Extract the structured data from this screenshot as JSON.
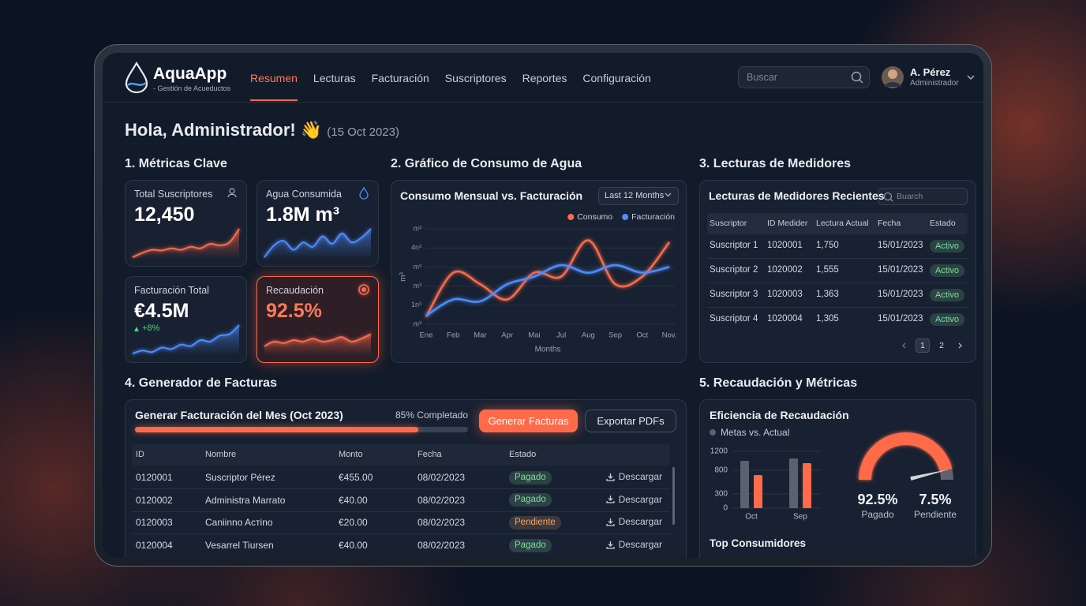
{
  "header": {
    "logo_title": "AquaApp",
    "logo_subtitle": "- Gestión de Acueductos",
    "nav": [
      "Resumen",
      "Lecturas",
      "Facturación",
      "Suscriptores",
      "Reportes",
      "Configuración"
    ],
    "search_placeholder": "Buscar",
    "user_name": "A. Pérez",
    "user_role": "Administrador"
  },
  "greeting": {
    "title": "Hola, Administrador! 👋",
    "date": "(15 Oct 2023)"
  },
  "metrics": {
    "title": "1. Métricas Clave",
    "cards": [
      {
        "label": "Total Suscriptores",
        "value": "12,450"
      },
      {
        "label": "Agua Consumida",
        "value": "1.8M m³"
      },
      {
        "label": "Facturación Total",
        "value": "€4.5M",
        "delta": "+8%"
      },
      {
        "label": "Recaudación",
        "value": "92.5%"
      }
    ]
  },
  "consumption": {
    "title": "2. Gráfico de Consumo de Agua",
    "period": "Last 12 Months"
  },
  "meters": {
    "title": "3. Lecturas de Medidores",
    "card_title": "Lecturas de Medidores Recientes",
    "search_placeholder": "Buarch",
    "columns": [
      "Suscriptor",
      "ID Medider",
      "Lectura Actual",
      "Fecha",
      "Estado"
    ],
    "rows": [
      {
        "subscriber": "Suscriptor 1",
        "meter_id": "1020001",
        "reading": "1,750",
        "date": "15/01/2023",
        "status": "Activo",
        "status_color": "#7fdc9c"
      },
      {
        "subscriber": "Suscriptor 2",
        "meter_id": "1020002",
        "reading": "1,555",
        "date": "15/01/2023",
        "status": "Activo",
        "status_color": "#7fdc9c"
      },
      {
        "subscriber": "Suscriptor 3",
        "meter_id": "1020003",
        "reading": "1,363",
        "date": "15/01/2023",
        "status": "Activo",
        "status_color": "#7fdc9c"
      },
      {
        "subscriber": "Suscriptor 4",
        "meter_id": "1020004",
        "reading": "1,305",
        "date": "15/01/2023",
        "status": "Activo",
        "status_color": "#7fdc9c"
      }
    ],
    "pages": [
      "1",
      "2"
    ]
  },
  "invoices": {
    "title": "4. Generador de Facturas",
    "task": "Generar Facturación del Mes (Oct 2023)",
    "progress": {
      "value": 85,
      "label": "85% Completado"
    },
    "buttons": [
      "Generar Facturas",
      "Exportar PDFs"
    ],
    "columns": [
      "ID",
      "Nombre",
      "Monto",
      "Fecha",
      "Estado"
    ],
    "rows": [
      {
        "id": "0120001",
        "name": "Suscriptor Pérez",
        "amount": "€455.00",
        "date": "08/02/2023",
        "status": "Pagado",
        "status_color": "#7fdc9c",
        "action": "Descargar"
      },
      {
        "id": "0120002",
        "name": "Administra Marrato",
        "amount": "€40.00",
        "date": "08/02/2023",
        "status": "Pagado",
        "status_color": "#7fdc9c",
        "action": "Descargar"
      },
      {
        "id": "0120003",
        "name": "Caniіnno Aстіno",
        "amount": "€20.00",
        "date": "08/02/2023",
        "status": "Pendiente",
        "status_color": "#f0a66a",
        "action": "Descargar"
      },
      {
        "id": "0120004",
        "name": "Vesarrel Tiursen",
        "amount": "€40.00",
        "date": "08/02/2023",
        "status": "Pagado",
        "status_color": "#7fdc9c",
        "action": "Descargar"
      }
    ]
  },
  "collection": {
    "title": "5. Recaudación y Métricas",
    "subtitle": "Top Consumidores"
  },
  "chart_data": [
    {
      "type": "line",
      "title": "Consumo Mensual vs. Facturación",
      "categories": [
        "Ene",
        "Feb",
        "Mar",
        "Apr",
        "Mai",
        "Jul",
        "Aug",
        "Sep",
        "Oct",
        "Nov."
      ],
      "series": [
        {
          "name": "Consumo",
          "color": "#ff6b4a",
          "values": [
            0.4,
            2.7,
            2.1,
            1.3,
            2.7,
            2.5,
            4.4,
            2.1,
            2.5,
            4.3
          ]
        },
        {
          "name": "Facturación",
          "color": "#4d8cff",
          "values": [
            0.45,
            1.3,
            1.2,
            2.1,
            2.5,
            3.1,
            2.7,
            3.1,
            2.7,
            3.0
          ]
        }
      ],
      "ylim": [
        0,
        5
      ],
      "yticks": [
        {
          "value": 0,
          "label": "m³"
        },
        {
          "value": 1,
          "label": "1n³"
        },
        {
          "value": 2,
          "label": "m³"
        },
        {
          "value": 3,
          "label": "m³"
        },
        {
          "value": 4,
          "label": "4n³"
        },
        {
          "value": 5,
          "label": "m³"
        }
      ],
      "y_label": "m³",
      "x_label": "Months",
      "legend": "top-right",
      "grid": true
    },
    {
      "type": "bar",
      "title": "Eficiencia de Recaudación",
      "legend_label": "Metas vs. Actual",
      "categories": [
        "Oct",
        "Sep"
      ],
      "series": [
        {
          "color": "#5b616d",
          "values": [
            1000,
            1050
          ]
        },
        {
          "color": "#ff6b4a",
          "values": [
            700,
            950
          ]
        }
      ],
      "ylim": [
        0,
        1200
      ],
      "yticks": [
        0,
        300,
        800,
        1200
      ],
      "grid": true
    },
    {
      "type": "gauge",
      "categories": [
        "Pagado",
        "Pendiente"
      ],
      "values": [
        92.5,
        7.5
      ],
      "value_labels": [
        "92.5%",
        "7.5%"
      ],
      "colors": [
        "#ff6b4a",
        "#5d6470"
      ]
    }
  ]
}
